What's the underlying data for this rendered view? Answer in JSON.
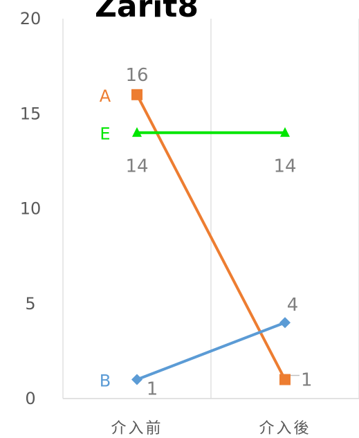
{
  "chart_data": {
    "type": "line",
    "title": "Zarit8",
    "categories": [
      "介入前",
      "介入後"
    ],
    "ylim": [
      0,
      20
    ],
    "yticks": [
      0,
      5,
      10,
      15,
      20
    ],
    "grid": "vertical",
    "series": [
      {
        "name": "A",
        "values": [
          16,
          1
        ],
        "color": "#ed7d31",
        "marker": "square"
      },
      {
        "name": "E",
        "values": [
          14,
          14
        ],
        "color": "#00e600",
        "marker": "triangle"
      },
      {
        "name": "B",
        "values": [
          1,
          4
        ],
        "color": "#5b9bd5",
        "marker": "diamond"
      }
    ],
    "data_labels": [
      {
        "series": "A",
        "point": 0,
        "text": "16"
      },
      {
        "series": "E",
        "point": 0,
        "text": "14"
      },
      {
        "series": "E",
        "point": 1,
        "text": "14"
      },
      {
        "series": "B",
        "point": 0,
        "text": "1"
      },
      {
        "series": "B",
        "point": 1,
        "text": "4"
      },
      {
        "series": "A",
        "point": 1,
        "text": "1"
      }
    ]
  }
}
